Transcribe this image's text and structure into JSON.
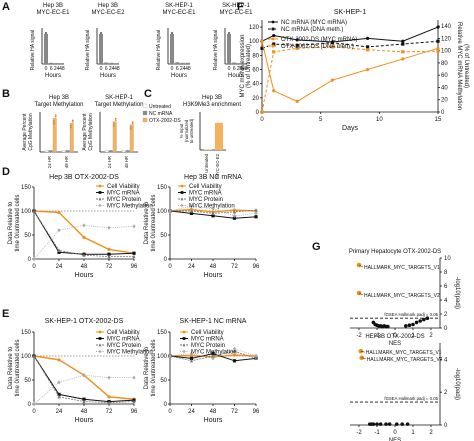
{
  "panels": {
    "A": {
      "letter": "A",
      "blocks": [
        {
          "title": [
            "Hep 3B",
            "MYC-EC-E1"
          ],
          "ylabel": "Relative HA signal",
          "xticks": [
            "0",
            "6",
            "24",
            "48"
          ],
          "xlabel": "Hours"
        },
        {
          "title": [
            "Hep 3B",
            "MYC-EC-E2"
          ],
          "ylabel": "Relative HA signal",
          "xticks": [
            "0",
            "6",
            "24",
            "48"
          ],
          "xlabel": "Hours"
        },
        {
          "title": [
            "SK-HEP-1",
            "MYC-EC-E1"
          ],
          "ylabel": "Relative HA signal",
          "xticks": [
            "0",
            "6",
            "24",
            "48"
          ],
          "xlabel": "Hours"
        },
        {
          "title": [
            "SK-HEP-1",
            "MYC-EC-E1"
          ],
          "ylabel": "Relative HA signal",
          "xticks": [
            "0",
            "6",
            "24",
            "48"
          ],
          "xlabel": "Hours"
        }
      ]
    },
    "B": {
      "letter": "B",
      "left_title": [
        "Hep 3B",
        "Target Methylation"
      ],
      "right_title": [
        "SK-HEP-1",
        "Target Methylation"
      ],
      "ylabel": [
        "Average Percent",
        "CpG Methylation"
      ],
      "xticks": [
        "24 HR",
        "48 HR"
      ],
      "legend": [
        "Untreated",
        "NC mRNA",
        "OTX-2002-DS"
      ]
    },
    "C": {
      "letter": "C",
      "title": [
        "Hep 3B",
        "H3K9Me3 enrichment"
      ],
      "ylabel": [
        "% Input",
        "(normalized",
        "to untreated)"
      ],
      "xticks": [
        "Untreated",
        "MYC-EC-E2"
      ]
    },
    "D": {
      "letter": "D",
      "left_title": "Hep 3B OTX-2002-DS",
      "right_title": "Hep 3B NC mRNA",
      "ylabel": [
        "Data Relative to",
        "time 0/untreated cells"
      ],
      "xlabel": "Hours",
      "yticks": [
        "0",
        "50",
        "100",
        "150"
      ],
      "xticks": [
        "0",
        "24",
        "48",
        "72",
        "96"
      ],
      "legend": [
        "Cell Viability",
        "MYC mRNA",
        "MYC Protein",
        "MYC Methylation"
      ]
    },
    "E": {
      "letter": "E",
      "left_title": "SK-HEP-1 OTX-2002-DS",
      "right_title": "SK-HEP-1 NC mRNA",
      "ylabel": [
        "Data Relative to",
        "time 0/untreated cells"
      ],
      "xlabel": "Hours",
      "yticks": [
        "0",
        "50",
        "100",
        "150"
      ],
      "xticks": [
        "0",
        "24",
        "48",
        "72",
        "96"
      ],
      "legend": [
        "Cell Viability",
        "MYC mRNA",
        "MYC Protein",
        "MYC Methylation"
      ]
    },
    "F": {
      "letter": "F",
      "title": "SK-HEP-1",
      "ylabel": [
        "MYC mRNA expression",
        "(% of Untreated)"
      ],
      "y2label": [
        "Relative MYC mRNA Methylation",
        "(% of Untreated)"
      ],
      "xlabel": "Days",
      "yticks": [
        "0",
        "20",
        "40",
        "60",
        "80",
        "100",
        "120"
      ],
      "y2ticks": [
        "0",
        "20",
        "40",
        "60",
        "80",
        "100",
        "120",
        "140"
      ],
      "xticks": [
        "0",
        "5",
        "10",
        "15"
      ],
      "legend": [
        "NC mRNA (MYC mRNA)",
        "NC mRNA (DNA meth.)",
        "OTX-2002-DS (MYC mRNA)",
        "OTX-2002-DS (DNA meth.)"
      ]
    },
    "G": {
      "letter": "G",
      "top": {
        "title": "Primary Hepatocyte OTX-2002-DS",
        "ylabel": "-log10(padj)",
        "yticks": [
          "0",
          "2",
          "4",
          "6",
          "8",
          "10"
        ],
        "xticks": [
          "-2",
          "-1",
          "0",
          "1",
          "2"
        ],
        "xlabel": "NES",
        "labels": [
          "HALLMARK_MYC_TARGETS_V1",
          "HALLMARK_MYC_TARGETS_V2"
        ],
        "threshold": "fGSEA Hallmark padj = 0.05"
      },
      "bottom": {
        "title": "HEP3B OTX-2002-DS",
        "ylabel": "-log10(padj)",
        "yticks": [
          "0",
          "2",
          "4"
        ],
        "xticks": [
          "-2",
          "-1",
          "0",
          "1",
          "2"
        ],
        "xlabel": "NES",
        "labels": [
          "HALLMARK_MYC_TARGETS_V1",
          "HALLMARK_MYC_TARGETS_V2"
        ],
        "threshold": "fGSEA Hallmark padj = 0.05"
      }
    }
  },
  "colors": {
    "cell_viability": "#f28e1c",
    "myc_mrna": "#111111",
    "myc_protein": "#777777",
    "myc_methylation": "#aaaaaa",
    "bar": "#888888",
    "bar_orange": "#f5b25a",
    "threshold": "#111111"
  },
  "chart_data": [
    {
      "type": "bar",
      "categories": [
        "0",
        "6",
        "24",
        "48"
      ],
      "series": [
        {
          "values": [
            1.0,
            0.04,
            0.03,
            0.03
          ]
        },
        {
          "values": [
            1.0,
            0.05,
            0.04,
            0.03
          ]
        },
        {
          "values": [
            1.0,
            0.06,
            0.04,
            0.04
          ]
        },
        {
          "values": [
            1.0,
            0.05,
            0.03,
            0.03
          ]
        }
      ],
      "ylabel": "Relative HA signal",
      "xlabel": "Hours"
    },
    {
      "type": "bar",
      "categories": [
        "24 HR",
        "48 HR"
      ],
      "series": [
        {
          "name": "Untreated",
          "values": [
            2,
            2
          ]
        },
        {
          "name": "NC mRNA",
          "values": [
            2,
            2
          ]
        },
        {
          "name": "OTX-2002-DS",
          "values": [
            42,
            36
          ]
        }
      ],
      "ylabel": "Average Percent CpG Methylation"
    },
    {
      "type": "bar",
      "categories": [
        "24 HR",
        "48 HR"
      ],
      "series": [
        {
          "name": "Untreated",
          "values": [
            2,
            2
          ]
        },
        {
          "name": "NC mRNA",
          "values": [
            2,
            2
          ]
        },
        {
          "name": "OTX-2002-DS",
          "values": [
            38,
            34
          ]
        }
      ],
      "ylabel": "Average Percent CpG Methylation"
    },
    {
      "type": "bar",
      "categories": [
        "Untreated",
        "MYC-EC-E2"
      ],
      "values": [
        0.2,
        10
      ],
      "ylabel": "% Input (normalized to untreated)"
    },
    {
      "type": "line",
      "x": [
        0,
        24,
        48,
        72,
        96
      ],
      "series": [
        {
          "name": "Cell Viability",
          "values": [
            100,
            97,
            45,
            20,
            12
          ]
        },
        {
          "name": "MYC mRNA",
          "values": [
            100,
            14,
            10,
            10,
            12
          ]
        },
        {
          "name": "MYC Protein",
          "values": [
            100,
            18,
            8,
            5,
            5
          ]
        },
        {
          "name": "MYC Methylation",
          "values": [
            0,
            60,
            70,
            65,
            68
          ]
        }
      ],
      "xlabel": "Hours",
      "ylim": [
        0,
        150
      ]
    },
    {
      "type": "line",
      "x": [
        0,
        24,
        48,
        72,
        96
      ],
      "series": [
        {
          "name": "Cell Viability",
          "values": [
            100,
            103,
            98,
            102,
            100
          ]
        },
        {
          "name": "MYC mRNA",
          "values": [
            100,
            95,
            90,
            85,
            88
          ]
        },
        {
          "name": "MYC Protein",
          "values": [
            100,
            100,
            95,
            98,
            102
          ]
        },
        {
          "name": "MYC Methylation",
          "values": [
            100,
            110,
            105,
            90,
            95
          ]
        }
      ],
      "xlabel": "Hours",
      "ylim": [
        0,
        150
      ]
    },
    {
      "type": "line",
      "x": [
        0,
        24,
        48,
        72,
        96
      ],
      "series": [
        {
          "name": "Cell Viability",
          "values": [
            100,
            92,
            60,
            15,
            10
          ]
        },
        {
          "name": "MYC mRNA",
          "values": [
            100,
            20,
            10,
            5,
            8
          ]
        },
        {
          "name": "MYC Protein",
          "values": [
            100,
            15,
            5,
            3,
            5
          ]
        },
        {
          "name": "MYC Methylation",
          "values": [
            0,
            45,
            60,
            55,
            55
          ]
        }
      ],
      "xlabel": "Hours",
      "ylim": [
        0,
        150
      ]
    },
    {
      "type": "line",
      "x": [
        0,
        24,
        48,
        72,
        96
      ],
      "series": [
        {
          "name": "Cell Viability",
          "values": [
            100,
            101,
            98,
            102,
            100
          ]
        },
        {
          "name": "MYC mRNA",
          "values": [
            100,
            95,
            105,
            90,
            95
          ]
        },
        {
          "name": "MYC Protein",
          "values": [
            100,
            90,
            100,
            110,
            95
          ]
        },
        {
          "name": "MYC Methylation",
          "values": [
            100,
            105,
            95,
            115,
            100
          ]
        }
      ],
      "xlabel": "Hours",
      "ylim": [
        0,
        150
      ]
    },
    {
      "type": "line",
      "x": [
        0,
        1,
        3,
        6,
        9,
        12,
        15
      ],
      "series": [
        {
          "name": "NC mRNA (MYC mRNA)",
          "values": [
            100,
            108,
            102,
            99,
            104,
            100,
            120
          ]
        },
        {
          "name": "NC mRNA (DNA meth.)",
          "values": [
            90,
            96,
            94,
            98,
            92,
            96,
            100
          ]
        },
        {
          "name": "OTX-2002-DS (MYC mRNA)",
          "values": [
            100,
            30,
            15,
            45,
            60,
            75,
            90
          ]
        },
        {
          "name": "OTX-2002-DS (DNA meth.)",
          "values": [
            0,
            85,
            90,
            92,
            88,
            85,
            86
          ]
        }
      ],
      "xlabel": "Days",
      "ylim": [
        0,
        130
      ]
    },
    {
      "type": "scatter",
      "x": [
        -2.0,
        -2.0,
        -1.2,
        -1.1,
        -1.0,
        -0.9,
        -0.8,
        -0.7,
        -0.6,
        -0.5,
        -0.4,
        0.6,
        0.8,
        1.0,
        1.2,
        1.4,
        1.6,
        1.8
      ],
      "y": [
        9.0,
        5.0,
        0.8,
        0.5,
        0.4,
        0.3,
        0.3,
        0.2,
        0.3,
        0.2,
        0.2,
        0.3,
        0.4,
        0.5,
        0.8,
        1.0,
        1.2,
        1.4
      ],
      "xlabel": "NES",
      "ylabel": "-log10(padj)",
      "ylim": [
        0,
        10
      ]
    },
    {
      "type": "scatter",
      "x": [
        -1.9,
        -1.85,
        -1.4,
        -1.3,
        -1.2,
        -1.0,
        -0.8,
        -0.5,
        -0.3,
        0.1,
        0.4,
        0.7
      ],
      "y": [
        4.5,
        4.1,
        0.05,
        0.05,
        0.05,
        0.05,
        0.05,
        0.05,
        0.05,
        0.05,
        0.05,
        0.05
      ],
      "xlabel": "NES",
      "ylabel": "-log10(padj)",
      "ylim": [
        0,
        5
      ]
    }
  ]
}
